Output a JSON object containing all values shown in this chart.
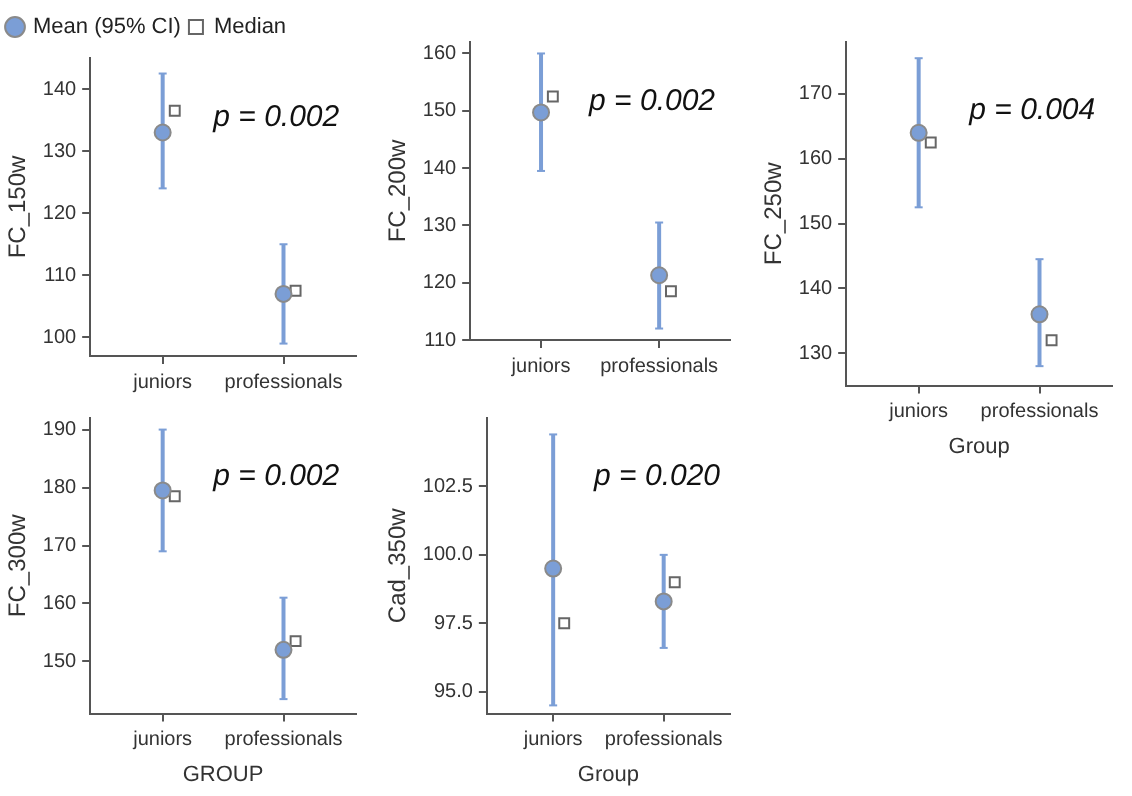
{
  "chart_data": [
    {
      "type": "scatter",
      "ylabel": "FC_150w",
      "categories": [
        "juniors",
        "professionals"
      ],
      "ylim": [
        97,
        145
      ],
      "yticks": [
        100,
        110,
        120,
        130,
        140
      ],
      "grid": false,
      "legend": "top left",
      "annotations": [
        "p = 0.002"
      ],
      "series": [
        {
          "name": "Mean (95% CI)",
          "marker": "circle",
          "color": "#7b9ed6",
          "values": [
            133,
            107
          ],
          "errors": [
            [
              124,
              142.5
            ],
            [
              99,
              115
            ]
          ]
        },
        {
          "name": "Median",
          "marker": "square",
          "color": "#666666",
          "values": [
            136.5,
            107.5
          ]
        }
      ]
    },
    {
      "type": "scatter",
      "ylabel": "FC_200w",
      "categories": [
        "juniors",
        "professionals"
      ],
      "ylim": [
        110,
        162
      ],
      "yticks": [
        110,
        120,
        130,
        140,
        150,
        160
      ],
      "grid": false,
      "annotations": [
        "p = 0.002"
      ],
      "series": [
        {
          "marker": "circle",
          "color": "#7b9ed6",
          "values": [
            149.7,
            121.3
          ],
          "errors": [
            [
              139.5,
              160
            ],
            [
              112,
              130.5
            ]
          ]
        },
        {
          "marker": "square",
          "color": "#666666",
          "values": [
            152.5,
            118.5
          ]
        }
      ]
    },
    {
      "type": "scatter",
      "ylabel": "FC_250w",
      "xlabel": "Group",
      "categories": [
        "juniors",
        "professionals"
      ],
      "ylim": [
        125,
        178
      ],
      "yticks": [
        130,
        140,
        150,
        160,
        170
      ],
      "grid": false,
      "annotations": [
        "p = 0.004"
      ],
      "series": [
        {
          "marker": "circle",
          "color": "#7b9ed6",
          "values": [
            164,
            136
          ],
          "errors": [
            [
              152.5,
              175.5
            ],
            [
              128,
              144.5
            ]
          ]
        },
        {
          "marker": "square",
          "color": "#666666",
          "values": [
            162.5,
            132
          ]
        }
      ]
    },
    {
      "type": "scatter",
      "ylabel": "FC_300w",
      "xlabel": "GROUP",
      "categories": [
        "juniors",
        "professionals"
      ],
      "ylim": [
        141,
        192
      ],
      "yticks": [
        150,
        160,
        170,
        180,
        190
      ],
      "grid": false,
      "annotations": [
        "p = 0.002"
      ],
      "series": [
        {
          "marker": "circle",
          "color": "#7b9ed6",
          "values": [
            179.5,
            152
          ],
          "errors": [
            [
              169,
              190
            ],
            [
              143.5,
              161
            ]
          ]
        },
        {
          "marker": "square",
          "color": "#666666",
          "values": [
            178.5,
            153.5
          ]
        }
      ]
    },
    {
      "type": "scatter",
      "ylabel": "Cad_350w",
      "xlabel": "Group",
      "categories": [
        "juniors",
        "professionals"
      ],
      "ylim": [
        94.2,
        105
      ],
      "yticks": [
        {
          "value": 95,
          "label": "95.0"
        },
        {
          "value": 97.5,
          "label": "97.5"
        },
        {
          "value": 100,
          "label": "100.0"
        },
        {
          "value": 102.5,
          "label": "102.5"
        }
      ],
      "grid": false,
      "annotations": [
        "p = 0.020"
      ],
      "series": [
        {
          "marker": "circle",
          "color": "#7b9ed6",
          "values": [
            99.5,
            98.3
          ],
          "errors": [
            [
              94.5,
              104.4
            ],
            [
              96.6,
              100
            ]
          ]
        },
        {
          "marker": "square",
          "color": "#666666",
          "values": [
            97.5,
            99
          ]
        }
      ]
    }
  ]
}
